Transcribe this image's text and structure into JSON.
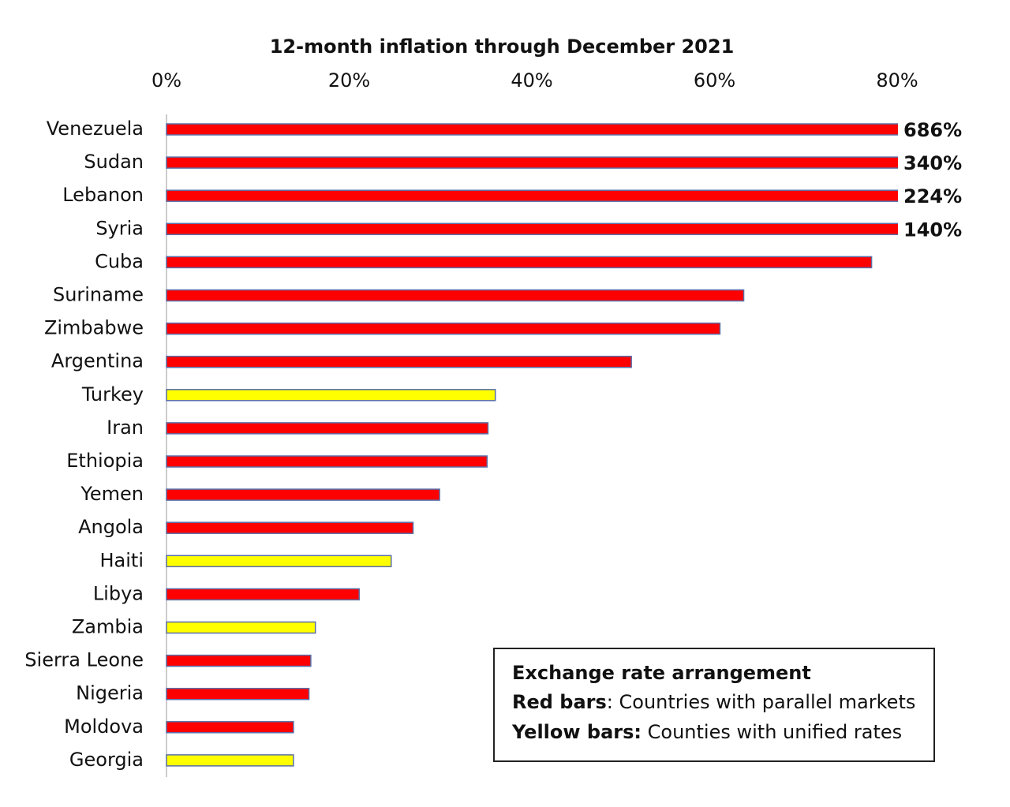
{
  "chart_data": {
    "type": "bar",
    "orientation": "horizontal",
    "title": "12-month inflation through December 2021",
    "categories": [
      "Venezuela",
      "Sudan",
      "Lebanon",
      "Syria",
      "Cuba",
      "Suriname",
      "Zimbabwe",
      "Argentina",
      "Turkey",
      "Iran",
      "Ethiopia",
      "Yemen",
      "Angola",
      "Haiti",
      "Libya",
      "Zambia",
      "Sierra Leone",
      "Nigeria",
      "Moldova",
      "Georgia"
    ],
    "values": [
      686,
      340,
      224,
      140,
      77.2,
      63.2,
      60.6,
      50.9,
      36.0,
      35.2,
      35.1,
      29.9,
      27.0,
      24.6,
      21.1,
      16.3,
      15.8,
      15.6,
      13.9,
      13.9
    ],
    "value_labels": [
      "686%",
      "340%",
      "224%",
      "140%",
      null,
      null,
      null,
      null,
      null,
      null,
      null,
      null,
      null,
      null,
      null,
      null,
      null,
      null,
      null,
      null
    ],
    "colors": [
      "#ff0000",
      "#ff0000",
      "#ff0000",
      "#ff0000",
      "#ff0000",
      "#ff0000",
      "#ff0000",
      "#ff0000",
      "#ffff00",
      "#ff0000",
      "#ff0000",
      "#ff0000",
      "#ff0000",
      "#ffff00",
      "#ff0000",
      "#ffff00",
      "#ff0000",
      "#ff0000",
      "#ff0000",
      "#ffff00"
    ],
    "xlim": [
      0,
      80
    ],
    "xticks": [
      {
        "value": 0,
        "label": "0%"
      },
      {
        "value": 20,
        "label": "20%"
      },
      {
        "value": 40,
        "label": "40%"
      },
      {
        "value": 60,
        "label": "60%"
      },
      {
        "value": 80,
        "label": "80%"
      }
    ],
    "grid": false,
    "legend": {
      "title": "Exchange rate arrangement",
      "items": [
        {
          "key": "Red bars",
          "text": ": Countries with parallel markets"
        },
        {
          "key": "Yellow bars:",
          "text": " Counties with unified rates"
        }
      ]
    }
  }
}
